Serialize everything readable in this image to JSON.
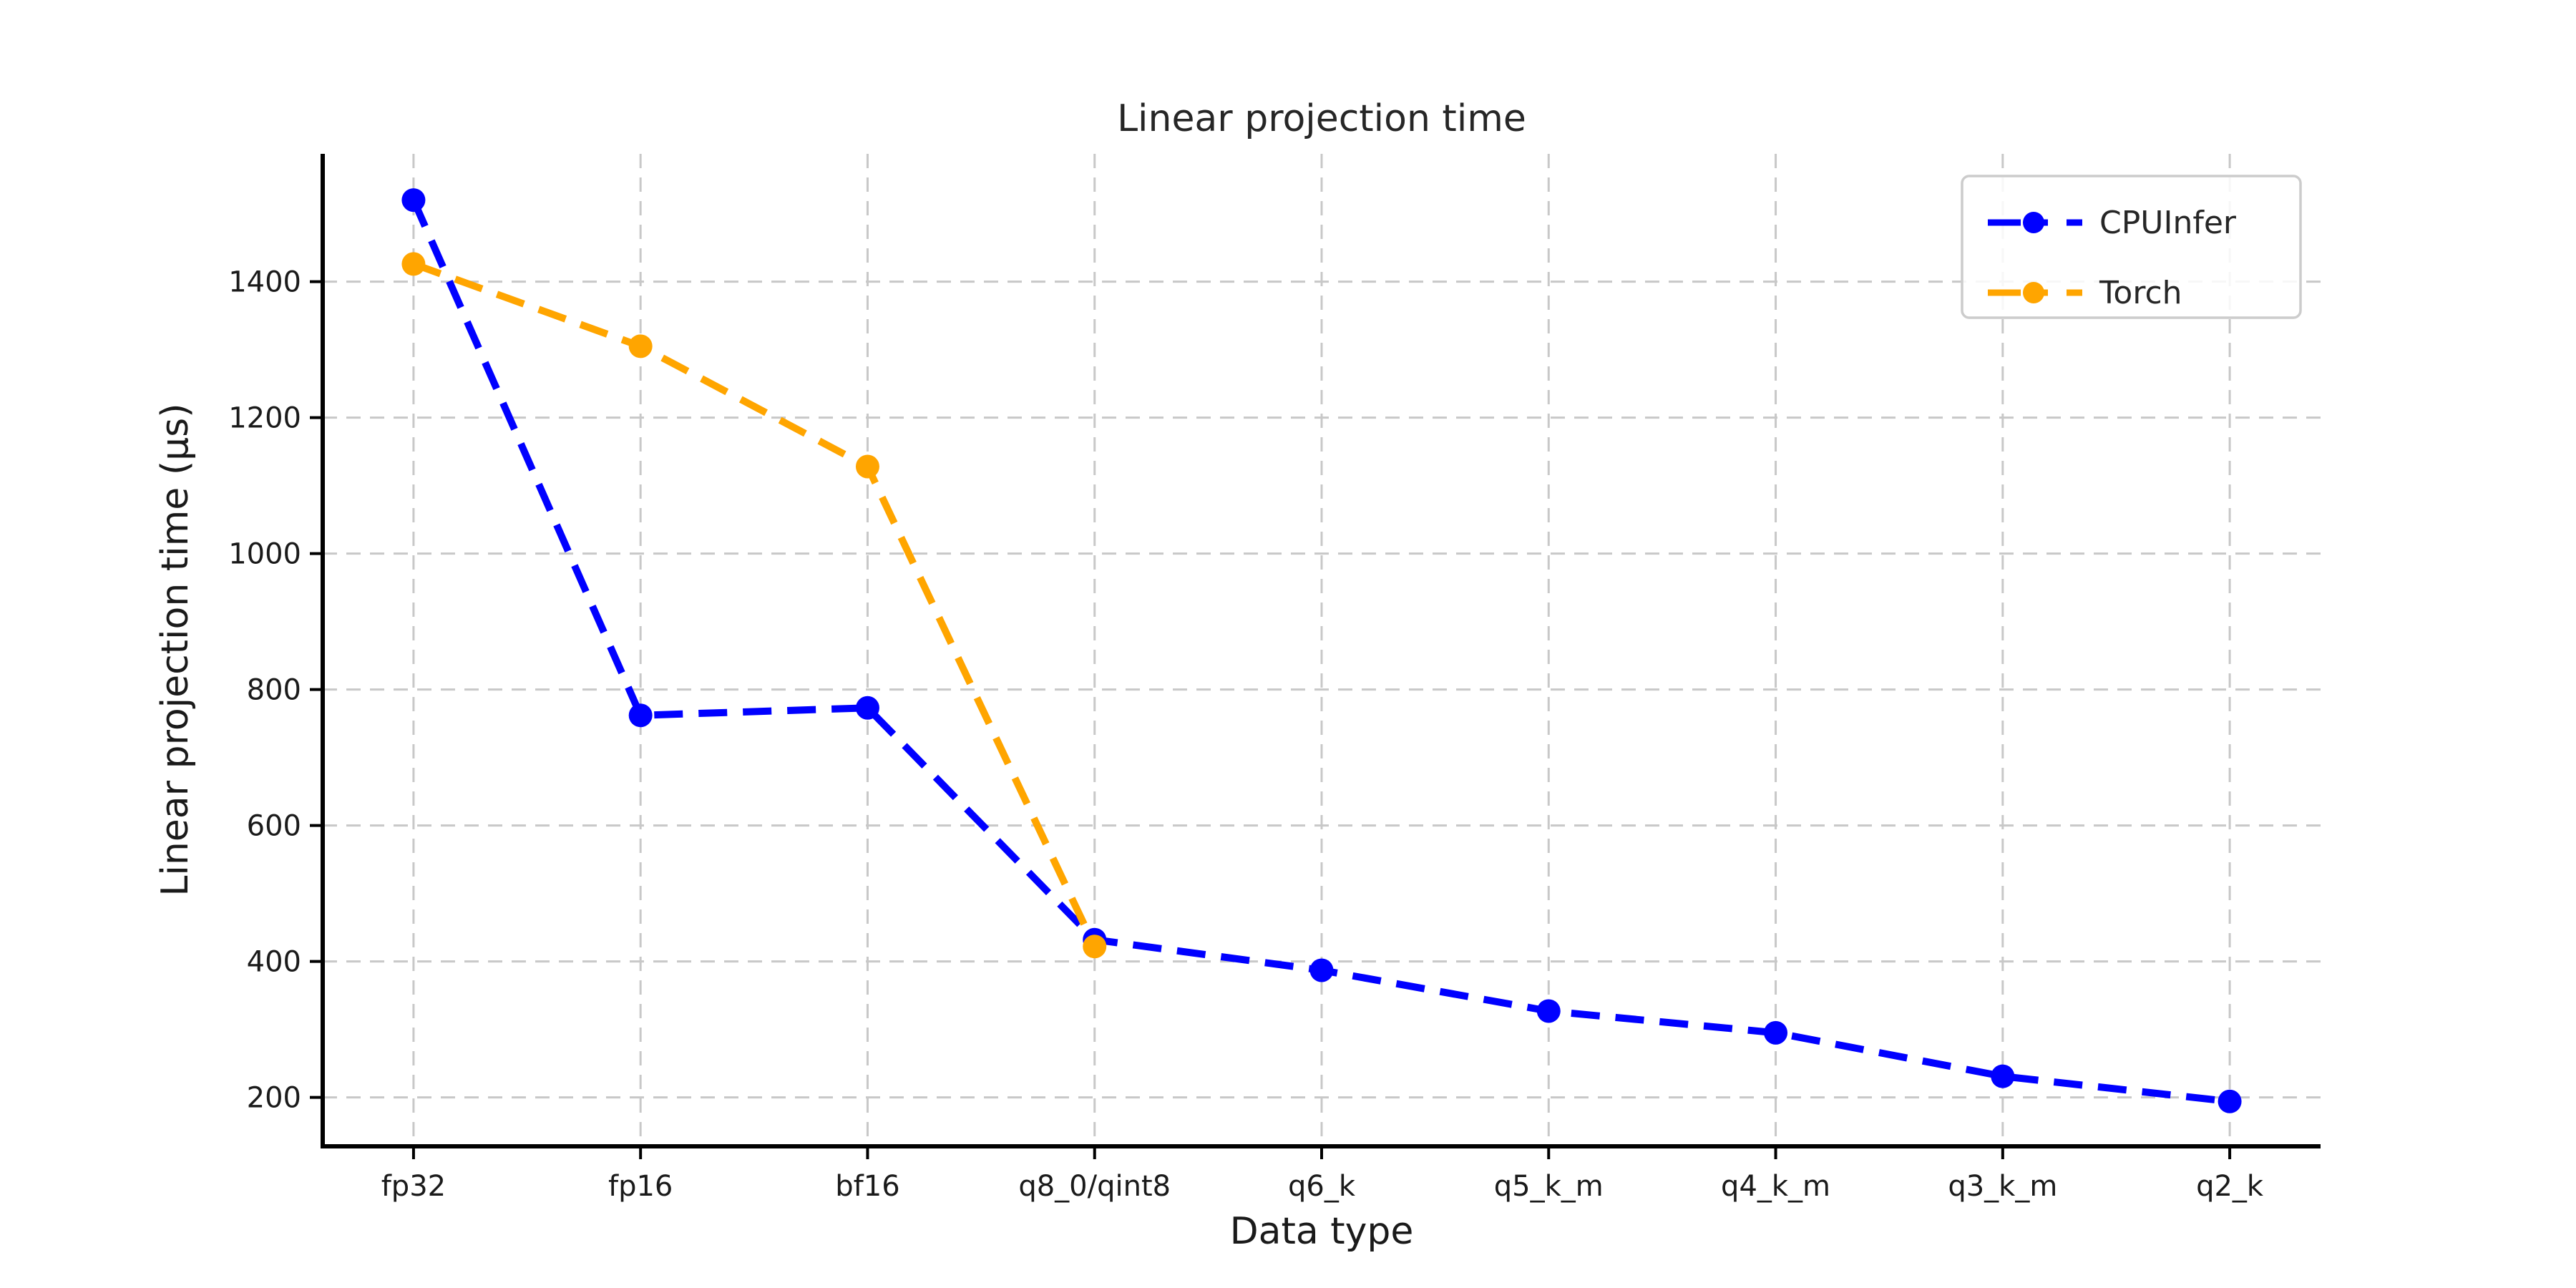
{
  "figure": {
    "background_color": "#ffffff"
  },
  "chart_data": {
    "type": "line",
    "title": "Linear projection time",
    "xlabel": "Data type",
    "ylabel": "Linear projection time (µs)",
    "categories": [
      "fp32",
      "fp16",
      "bf16",
      "q8_0/qint8",
      "q6_k",
      "q5_k_m",
      "q4_k_m",
      "q3_k_m",
      "q2_k"
    ],
    "series": [
      {
        "name": "CPUInfer",
        "color": "#0000FF",
        "values": [
          1520,
          762,
          773,
          432,
          387,
          327,
          295,
          231,
          194
        ]
      },
      {
        "name": "Torch",
        "color": "#FFA500",
        "values": [
          1426,
          1305,
          1128,
          422,
          null,
          null,
          null,
          null,
          null
        ]
      }
    ],
    "ytick_labels": [
      "200",
      "400",
      "600",
      "800",
      "1000",
      "1200",
      "1400"
    ],
    "ytick_values": [
      200,
      400,
      600,
      800,
      1000,
      1200,
      1400
    ],
    "ylim": [
      128,
      1588
    ],
    "grid": true,
    "line_style": "dashed",
    "marker": "circle",
    "legend_position": "upper right",
    "colors": {
      "grid": "#c8c8c8",
      "spine": "#000000",
      "tick": "#000000",
      "text": "#1a1a1a",
      "legend_border": "#cccccc",
      "legend_fill": "#ffffff"
    }
  }
}
